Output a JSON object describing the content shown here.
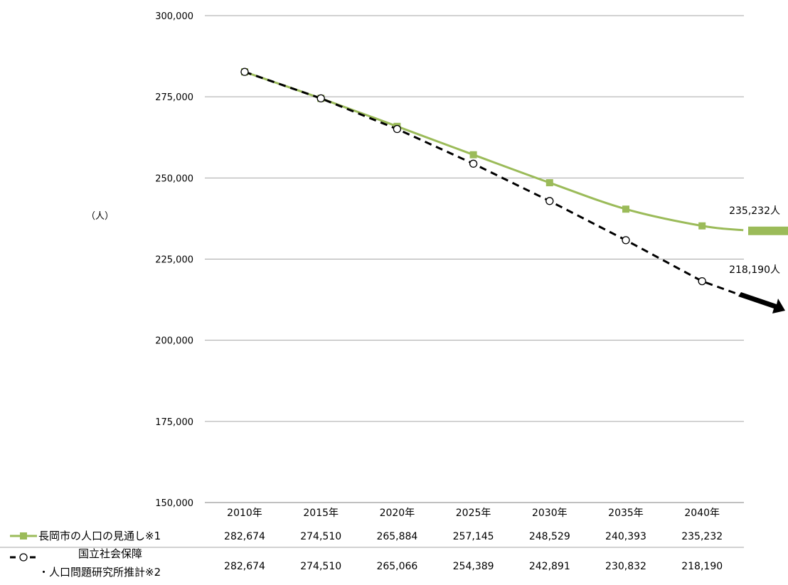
{
  "chart_data": {
    "type": "line",
    "y_unit_label": "（人）",
    "ylim": [
      150000,
      300000
    ],
    "y_ticks": [
      "150,000",
      "175,000",
      "200,000",
      "225,000",
      "250,000",
      "275,000",
      "300,000"
    ],
    "y_tick_values": [
      150000,
      175000,
      200000,
      225000,
      250000,
      275000,
      300000
    ],
    "categories": [
      "2010年",
      "2015年",
      "2020年",
      "2025年",
      "2030年",
      "2035年",
      "2040年"
    ],
    "grid": true,
    "series": [
      {
        "name": "長岡市の人口の見通し※1",
        "color": "#9bbb59",
        "style": "solid",
        "marker": "square",
        "values": [
          282674,
          274510,
          265884,
          257145,
          248529,
          240393,
          235232
        ],
        "labels": [
          "282,674",
          "274,510",
          "265,884",
          "257,145",
          "248,529",
          "240,393",
          "235,232"
        ]
      },
      {
        "name_line1": "国立社会保障",
        "name_line2": "・人口問題研究所推計※2",
        "color": "#000000",
        "style": "dashed",
        "marker": "circle",
        "values": [
          282674,
          274510,
          265066,
          254389,
          242891,
          230832,
          218190
        ],
        "labels": [
          "282,674",
          "274,510",
          "265,066",
          "254,389",
          "242,891",
          "230,832",
          "218,190"
        ]
      }
    ],
    "annotations": {
      "green_end": "235,232人",
      "black_end": "218,190人"
    }
  }
}
